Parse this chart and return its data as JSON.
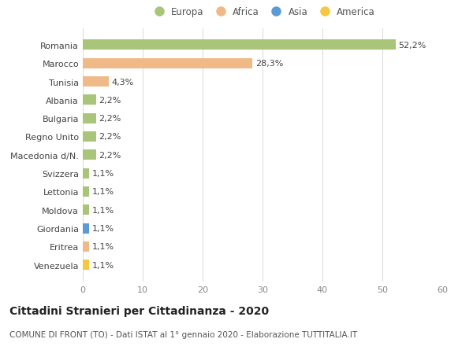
{
  "countries": [
    "Romania",
    "Marocco",
    "Tunisia",
    "Albania",
    "Bulgaria",
    "Regno Unito",
    "Macedonia d/N.",
    "Svizzera",
    "Lettonia",
    "Moldova",
    "Giordania",
    "Eritrea",
    "Venezuela"
  ],
  "values": [
    52.2,
    28.3,
    4.3,
    2.2,
    2.2,
    2.2,
    2.2,
    1.1,
    1.1,
    1.1,
    1.1,
    1.1,
    1.1
  ],
  "labels": [
    "52,2%",
    "28,3%",
    "4,3%",
    "2,2%",
    "2,2%",
    "2,2%",
    "2,2%",
    "1,1%",
    "1,1%",
    "1,1%",
    "1,1%",
    "1,1%",
    "1,1%"
  ],
  "colors": [
    "#a8c57a",
    "#f0b988",
    "#f0b988",
    "#a8c57a",
    "#a8c57a",
    "#a8c57a",
    "#a8c57a",
    "#a8c57a",
    "#a8c57a",
    "#a8c57a",
    "#5b9bd5",
    "#f0b988",
    "#f5c842"
  ],
  "legend_labels": [
    "Europa",
    "Africa",
    "Asia",
    "America"
  ],
  "legend_colors": [
    "#a8c57a",
    "#f0b988",
    "#5b9bd5",
    "#f5c842"
  ],
  "title": "Cittadini Stranieri per Cittadinanza - 2020",
  "subtitle": "COMUNE DI FRONT (TO) - Dati ISTAT al 1° gennaio 2020 - Elaborazione TUTTITALIA.IT",
  "xlim": [
    0,
    60
  ],
  "xticks": [
    0,
    10,
    20,
    30,
    40,
    50,
    60
  ],
  "background_color": "#ffffff",
  "grid_color": "#dddddd",
  "bar_height": 0.55,
  "title_fontsize": 10,
  "subtitle_fontsize": 7.5,
  "tick_fontsize": 8,
  "label_fontsize": 8,
  "legend_fontsize": 8.5
}
